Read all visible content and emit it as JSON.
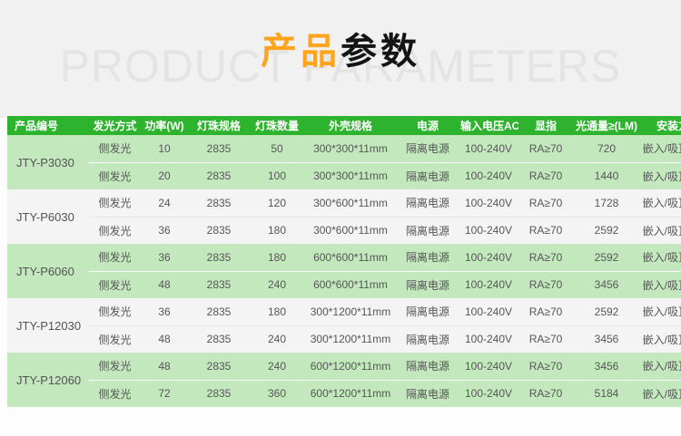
{
  "header": {
    "title_highlight": "产品",
    "title_rest": "参数",
    "watermark": "PRODUCT PARAMETERS",
    "accent_color": "#ffa41d",
    "title_color": "#141414",
    "watermark_color": "#e4e4e4",
    "band_bg": "#f1f1f1"
  },
  "table": {
    "header_bg": "#2db32d",
    "header_text_color": "#ffffff",
    "row_green": "#c3e8bd",
    "row_gray": "#f4f4f4",
    "body_text_color": "#565656",
    "columns": [
      "产品编号",
      "发光方式",
      "功率(W)",
      "灯珠规格",
      "灯珠数量",
      "外壳规格",
      "电源",
      "输入电压AC",
      "显指",
      "光通量≥(LM)",
      "安装方式"
    ],
    "groups": [
      {
        "product_code": "JTY-P3030",
        "tint": "green",
        "rows": [
          [
            "侧发光",
            "10",
            "2835",
            "50",
            "300*300*11mm",
            "隔离电源",
            "100-240V",
            "RA≥70",
            "720",
            "嵌入/吸顶/吊装"
          ],
          [
            "侧发光",
            "20",
            "2835",
            "100",
            "300*300*11mm",
            "隔离电源",
            "100-240V",
            "RA≥70",
            "1440",
            "嵌入/吸顶/吊装"
          ]
        ]
      },
      {
        "product_code": "JTY-P6030",
        "tint": "gray",
        "rows": [
          [
            "侧发光",
            "24",
            "2835",
            "120",
            "300*600*11mm",
            "隔离电源",
            "100-240V",
            "RA≥70",
            "1728",
            "嵌入/吸顶/吊装"
          ],
          [
            "侧发光",
            "36",
            "2835",
            "180",
            "300*600*11mm",
            "隔离电源",
            "100-240V",
            "RA≥70",
            "2592",
            "嵌入/吸顶/吊装"
          ]
        ]
      },
      {
        "product_code": "JTY-P6060",
        "tint": "green",
        "rows": [
          [
            "侧发光",
            "36",
            "2835",
            "180",
            "600*600*11mm",
            "隔离电源",
            "100-240V",
            "RA≥70",
            "2592",
            "嵌入/吸顶/吊装"
          ],
          [
            "侧发光",
            "48",
            "2835",
            "240",
            "600*600*11mm",
            "隔离电源",
            "100-240V",
            "RA≥70",
            "3456",
            "嵌入/吸顶/吊装"
          ]
        ]
      },
      {
        "product_code": "JTY-P12030",
        "tint": "gray",
        "rows": [
          [
            "侧发光",
            "36",
            "2835",
            "180",
            "300*1200*11mm",
            "隔离电源",
            "100-240V",
            "RA≥70",
            "2592",
            "嵌入/吸顶/吊装"
          ],
          [
            "侧发光",
            "48",
            "2835",
            "240",
            "300*1200*11mm",
            "隔离电源",
            "100-240V",
            "RA≥70",
            "3456",
            "嵌入/吸顶/吊装"
          ]
        ]
      },
      {
        "product_code": "JTY-P12060",
        "tint": "green",
        "rows": [
          [
            "侧发光",
            "48",
            "2835",
            "240",
            "600*1200*11mm",
            "隔离电源",
            "100-240V",
            "RA≥70",
            "3456",
            "嵌入/吸顶/吊装"
          ],
          [
            "侧发光",
            "72",
            "2835",
            "360",
            "600*1200*11mm",
            "隔离电源",
            "100-240V",
            "RA≥70",
            "5184",
            "嵌入/吸顶/吊装"
          ]
        ]
      }
    ]
  }
}
